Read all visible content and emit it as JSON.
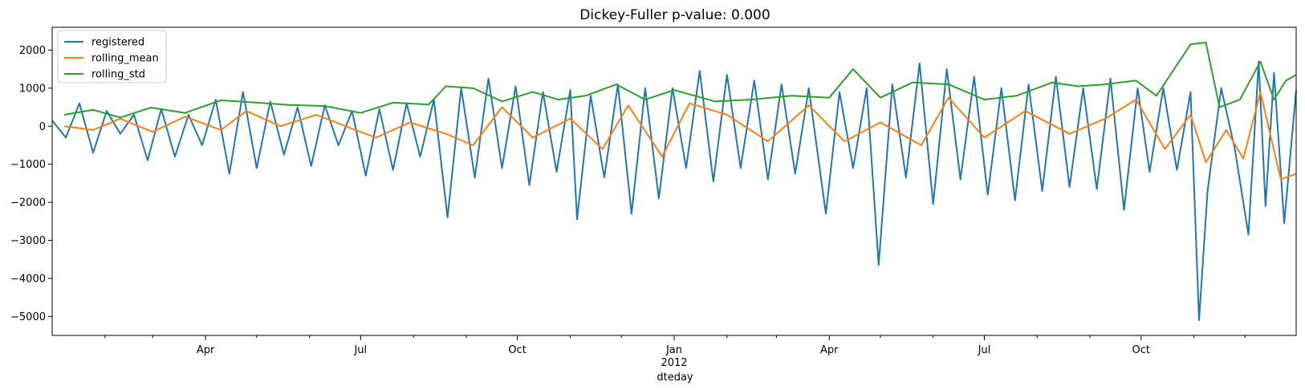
{
  "chart_data": {
    "type": "line",
    "title": "Dickey-Fuller p-value: 0.000",
    "xlabel": "dteday",
    "ylabel": "",
    "x_range": [
      "2011-01-01",
      "2012-12-31"
    ],
    "ylim": [
      -5500,
      2600
    ],
    "y_ticks": [
      2000,
      1000,
      0,
      -1000,
      -2000,
      -3000,
      -4000,
      -5000
    ],
    "y_tick_labels": [
      "2000",
      "1000",
      "0",
      "−1000",
      "−2000",
      "−3000",
      "−4000",
      "−5000"
    ],
    "x_major_ticks": [
      {
        "date": "2011-04-01",
        "label": "Apr"
      },
      {
        "date": "2011-07-01",
        "label": "Jul"
      },
      {
        "date": "2011-10-01",
        "label": "Oct"
      },
      {
        "date": "2012-01-01",
        "label": "Jan",
        "sublabel": "2012"
      },
      {
        "date": "2012-04-01",
        "label": "Apr"
      },
      {
        "date": "2012-07-01",
        "label": "Jul"
      },
      {
        "date": "2012-10-01",
        "label": "Oct"
      }
    ],
    "x_minor_ticks": [
      "2011-02-01",
      "2011-03-01",
      "2011-05-01",
      "2011-06-01",
      "2011-08-01",
      "2011-09-01",
      "2011-11-01",
      "2011-12-01",
      "2012-02-01",
      "2012-03-01",
      "2012-05-01",
      "2012-06-01",
      "2012-08-01",
      "2012-09-01",
      "2012-11-01",
      "2012-12-01"
    ],
    "grid": false,
    "legend_position": "top-left",
    "series": [
      {
        "name": "registered",
        "color": "#1f77b4",
        "points": [
          [
            "2011-01-01",
            150
          ],
          [
            "2011-01-09",
            -300
          ],
          [
            "2011-01-17",
            600
          ],
          [
            "2011-01-25",
            -700
          ],
          [
            "2011-02-02",
            400
          ],
          [
            "2011-02-10",
            -200
          ],
          [
            "2011-02-18",
            300
          ],
          [
            "2011-02-26",
            -900
          ],
          [
            "2011-03-06",
            450
          ],
          [
            "2011-03-14",
            -800
          ],
          [
            "2011-03-22",
            300
          ],
          [
            "2011-03-30",
            -500
          ],
          [
            "2011-04-07",
            700
          ],
          [
            "2011-04-15",
            -1250
          ],
          [
            "2011-04-23",
            900
          ],
          [
            "2011-05-01",
            -1100
          ],
          [
            "2011-05-09",
            650
          ],
          [
            "2011-05-17",
            -750
          ],
          [
            "2011-05-25",
            500
          ],
          [
            "2011-06-02",
            -1050
          ],
          [
            "2011-06-10",
            550
          ],
          [
            "2011-06-18",
            -500
          ],
          [
            "2011-06-26",
            400
          ],
          [
            "2011-07-04",
            -1300
          ],
          [
            "2011-07-12",
            450
          ],
          [
            "2011-07-20",
            -1150
          ],
          [
            "2011-07-28",
            600
          ],
          [
            "2011-08-05",
            -800
          ],
          [
            "2011-08-13",
            700
          ],
          [
            "2011-08-21",
            -2400
          ],
          [
            "2011-08-29",
            1000
          ],
          [
            "2011-09-06",
            -1350
          ],
          [
            "2011-09-14",
            1250
          ],
          [
            "2011-09-22",
            -1100
          ],
          [
            "2011-09-30",
            1050
          ],
          [
            "2011-10-08",
            -1550
          ],
          [
            "2011-10-16",
            900
          ],
          [
            "2011-10-24",
            -1200
          ],
          [
            "2011-11-01",
            950
          ],
          [
            "2011-11-05",
            -2450
          ],
          [
            "2011-11-13",
            800
          ],
          [
            "2011-11-21",
            -1350
          ],
          [
            "2011-11-29",
            1100
          ],
          [
            "2011-12-07",
            -2300
          ],
          [
            "2011-12-15",
            1000
          ],
          [
            "2011-12-23",
            -1900
          ],
          [
            "2011-12-31",
            1000
          ],
          [
            "2012-01-08",
            -1100
          ],
          [
            "2012-01-16",
            1450
          ],
          [
            "2012-01-24",
            -1450
          ],
          [
            "2012-02-01",
            1350
          ],
          [
            "2012-02-09",
            -1100
          ],
          [
            "2012-02-17",
            1200
          ],
          [
            "2012-02-25",
            -1400
          ],
          [
            "2012-03-04",
            1100
          ],
          [
            "2012-03-12",
            -1250
          ],
          [
            "2012-03-20",
            1000
          ],
          [
            "2012-03-30",
            -2300
          ],
          [
            "2012-04-07",
            900
          ],
          [
            "2012-04-15",
            -1100
          ],
          [
            "2012-04-23",
            1000
          ],
          [
            "2012-04-30",
            -3650
          ],
          [
            "2012-05-08",
            1100
          ],
          [
            "2012-05-16",
            -1350
          ],
          [
            "2012-05-24",
            1650
          ],
          [
            "2012-06-01",
            -2050
          ],
          [
            "2012-06-09",
            1500
          ],
          [
            "2012-06-17",
            -1400
          ],
          [
            "2012-06-25",
            1300
          ],
          [
            "2012-07-03",
            -1800
          ],
          [
            "2012-07-11",
            1000
          ],
          [
            "2012-07-19",
            -1950
          ],
          [
            "2012-07-27",
            1100
          ],
          [
            "2012-08-04",
            -1700
          ],
          [
            "2012-08-12",
            1300
          ],
          [
            "2012-08-20",
            -1600
          ],
          [
            "2012-08-28",
            1000
          ],
          [
            "2012-09-05",
            -1650
          ],
          [
            "2012-09-13",
            1250
          ],
          [
            "2012-09-21",
            -2200
          ],
          [
            "2012-09-29",
            1000
          ],
          [
            "2012-10-06",
            -1200
          ],
          [
            "2012-10-14",
            1000
          ],
          [
            "2012-10-22",
            -1150
          ],
          [
            "2012-10-30",
            900
          ],
          [
            "2012-11-04",
            -5100
          ],
          [
            "2012-11-09",
            -1700
          ],
          [
            "2012-11-17",
            1000
          ],
          [
            "2012-11-25",
            -600
          ],
          [
            "2012-12-03",
            -2850
          ],
          [
            "2012-12-09",
            1700
          ],
          [
            "2012-12-13",
            -2100
          ],
          [
            "2012-12-18",
            1400
          ],
          [
            "2012-12-24",
            -2550
          ],
          [
            "2012-12-31",
            950
          ]
        ]
      },
      {
        "name": "rolling_mean",
        "color": "#ff7f0e",
        "points": [
          [
            "2011-01-08",
            0
          ],
          [
            "2011-01-25",
            -100
          ],
          [
            "2011-02-10",
            200
          ],
          [
            "2011-03-01",
            -150
          ],
          [
            "2011-03-20",
            250
          ],
          [
            "2011-04-10",
            -100
          ],
          [
            "2011-04-25",
            400
          ],
          [
            "2011-05-15",
            0
          ],
          [
            "2011-06-05",
            300
          ],
          [
            "2011-06-25",
            -50
          ],
          [
            "2011-07-10",
            -300
          ],
          [
            "2011-07-30",
            100
          ],
          [
            "2011-08-20",
            -200
          ],
          [
            "2011-09-05",
            -500
          ],
          [
            "2011-09-22",
            500
          ],
          [
            "2011-10-10",
            -300
          ],
          [
            "2011-11-01",
            200
          ],
          [
            "2011-11-20",
            -600
          ],
          [
            "2011-12-05",
            550
          ],
          [
            "2011-12-25",
            -800
          ],
          [
            "2012-01-10",
            600
          ],
          [
            "2012-02-01",
            300
          ],
          [
            "2012-02-25",
            -400
          ],
          [
            "2012-03-20",
            550
          ],
          [
            "2012-04-10",
            -400
          ],
          [
            "2012-05-01",
            100
          ],
          [
            "2012-05-25",
            -500
          ],
          [
            "2012-06-10",
            750
          ],
          [
            "2012-07-01",
            -300
          ],
          [
            "2012-07-25",
            400
          ],
          [
            "2012-08-20",
            -200
          ],
          [
            "2012-09-10",
            200
          ],
          [
            "2012-09-28",
            700
          ],
          [
            "2012-10-15",
            -600
          ],
          [
            "2012-10-30",
            300
          ],
          [
            "2012-11-08",
            -950
          ],
          [
            "2012-11-20",
            -100
          ],
          [
            "2012-11-30",
            -850
          ],
          [
            "2012-12-10",
            900
          ],
          [
            "2012-12-22",
            -1400
          ],
          [
            "2012-12-31",
            -1250
          ]
        ]
      },
      {
        "name": "rolling_std",
        "color": "#2ca02c",
        "points": [
          [
            "2011-01-08",
            300
          ],
          [
            "2011-01-25",
            430
          ],
          [
            "2011-02-10",
            230
          ],
          [
            "2011-02-28",
            490
          ],
          [
            "2011-03-20",
            350
          ],
          [
            "2011-04-10",
            680
          ],
          [
            "2011-05-01",
            620
          ],
          [
            "2011-05-20",
            560
          ],
          [
            "2011-06-10",
            530
          ],
          [
            "2011-07-01",
            350
          ],
          [
            "2011-07-20",
            620
          ],
          [
            "2011-08-10",
            570
          ],
          [
            "2011-08-20",
            1050
          ],
          [
            "2011-09-05",
            1000
          ],
          [
            "2011-09-22",
            650
          ],
          [
            "2011-10-10",
            900
          ],
          [
            "2011-10-25",
            700
          ],
          [
            "2011-11-10",
            800
          ],
          [
            "2011-11-28",
            1100
          ],
          [
            "2011-12-15",
            700
          ],
          [
            "2012-01-01",
            950
          ],
          [
            "2012-01-25",
            650
          ],
          [
            "2012-02-15",
            700
          ],
          [
            "2012-03-10",
            800
          ],
          [
            "2012-04-01",
            750
          ],
          [
            "2012-04-15",
            1500
          ],
          [
            "2012-05-01",
            750
          ],
          [
            "2012-05-20",
            1150
          ],
          [
            "2012-06-10",
            1100
          ],
          [
            "2012-07-01",
            700
          ],
          [
            "2012-07-20",
            800
          ],
          [
            "2012-08-10",
            1150
          ],
          [
            "2012-08-25",
            1050
          ],
          [
            "2012-09-10",
            1100
          ],
          [
            "2012-09-28",
            1200
          ],
          [
            "2012-10-10",
            800
          ],
          [
            "2012-10-30",
            2150
          ],
          [
            "2012-11-08",
            2200
          ],
          [
            "2012-11-16",
            500
          ],
          [
            "2012-11-28",
            700
          ],
          [
            "2012-12-10",
            1700
          ],
          [
            "2012-12-18",
            700
          ],
          [
            "2012-12-25",
            1200
          ],
          [
            "2012-12-31",
            1350
          ]
        ]
      }
    ]
  }
}
